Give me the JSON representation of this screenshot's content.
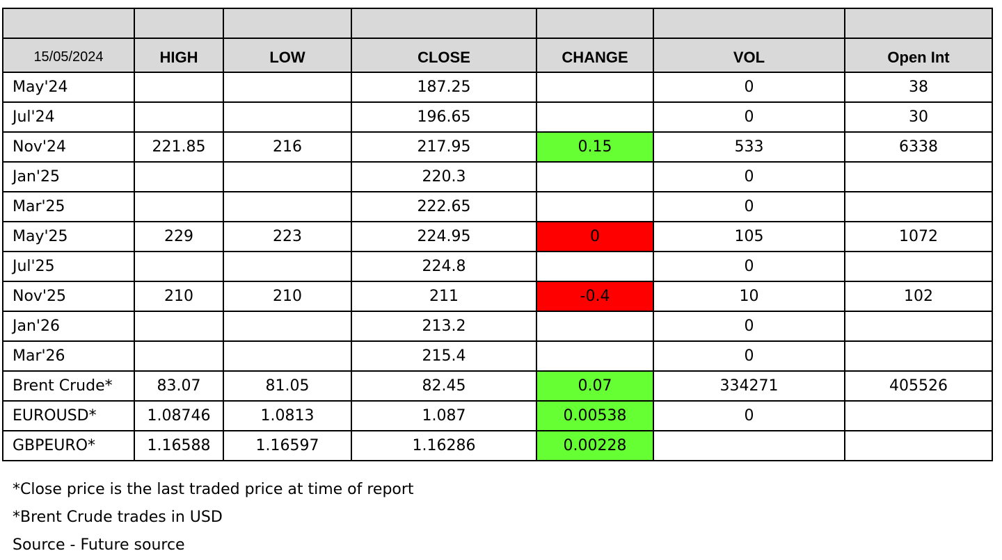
{
  "header": {
    "date": "15/05/2024",
    "columns": [
      "HIGH",
      "LOW",
      "CLOSE",
      "CHANGE",
      "VOL",
      "Open Int"
    ]
  },
  "colors": {
    "positive": "#66ff33",
    "negative": "#ff0000",
    "header": "#d9d9d9"
  },
  "rows": [
    {
      "name": "May'24",
      "high": "",
      "low": "",
      "close": "187.25",
      "change": "",
      "change_dir": "",
      "vol": "0",
      "open_int": "38"
    },
    {
      "name": "Jul'24",
      "high": "",
      "low": "",
      "close": "196.65",
      "change": "",
      "change_dir": "",
      "vol": "0",
      "open_int": "30"
    },
    {
      "name": "Nov'24",
      "high": "221.85",
      "low": "216",
      "close": "217.95",
      "change": "0.15",
      "change_dir": "pos",
      "vol": "533",
      "open_int": "6338"
    },
    {
      "name": "Jan'25",
      "high": "",
      "low": "",
      "close": "220.3",
      "change": "",
      "change_dir": "",
      "vol": "0",
      "open_int": ""
    },
    {
      "name": "Mar'25",
      "high": "",
      "low": "",
      "close": "222.65",
      "change": "",
      "change_dir": "",
      "vol": "0",
      "open_int": ""
    },
    {
      "name": "May'25",
      "high": "229",
      "low": "223",
      "close": "224.95",
      "change": "0",
      "change_dir": "neg",
      "vol": "105",
      "open_int": "1072"
    },
    {
      "name": "Jul'25",
      "high": "",
      "low": "",
      "close": "224.8",
      "change": "",
      "change_dir": "",
      "vol": "0",
      "open_int": ""
    },
    {
      "name": "Nov'25",
      "high": "210",
      "low": "210",
      "close": "211",
      "change": "-0.4",
      "change_dir": "neg",
      "vol": "10",
      "open_int": "102"
    },
    {
      "name": "Jan'26",
      "high": "",
      "low": "",
      "close": "213.2",
      "change": "",
      "change_dir": "",
      "vol": "0",
      "open_int": ""
    },
    {
      "name": "Mar'26",
      "high": "",
      "low": "",
      "close": "215.4",
      "change": "",
      "change_dir": "",
      "vol": "0",
      "open_int": ""
    },
    {
      "name": "Brent Crude*",
      "high": "83.07",
      "low": "81.05",
      "close": "82.45",
      "change": "0.07",
      "change_dir": "pos",
      "vol": "334271",
      "open_int": "405526"
    },
    {
      "name": "EUROUSD*",
      "high": "1.08746",
      "low": "1.0813",
      "close": "1.087",
      "change": "0.00538",
      "change_dir": "pos",
      "vol": "0",
      "open_int": ""
    },
    {
      "name": "GBPEURO*",
      "high": "1.16588",
      "low": "1.16597",
      "close": "1.16286",
      "change": "0.00228",
      "change_dir": "pos",
      "vol": "",
      "open_int": ""
    }
  ],
  "notes": [
    "*Close price is the last traded price at time of report",
    "*Brent Crude trades in USD",
    "Source -  Future source"
  ]
}
